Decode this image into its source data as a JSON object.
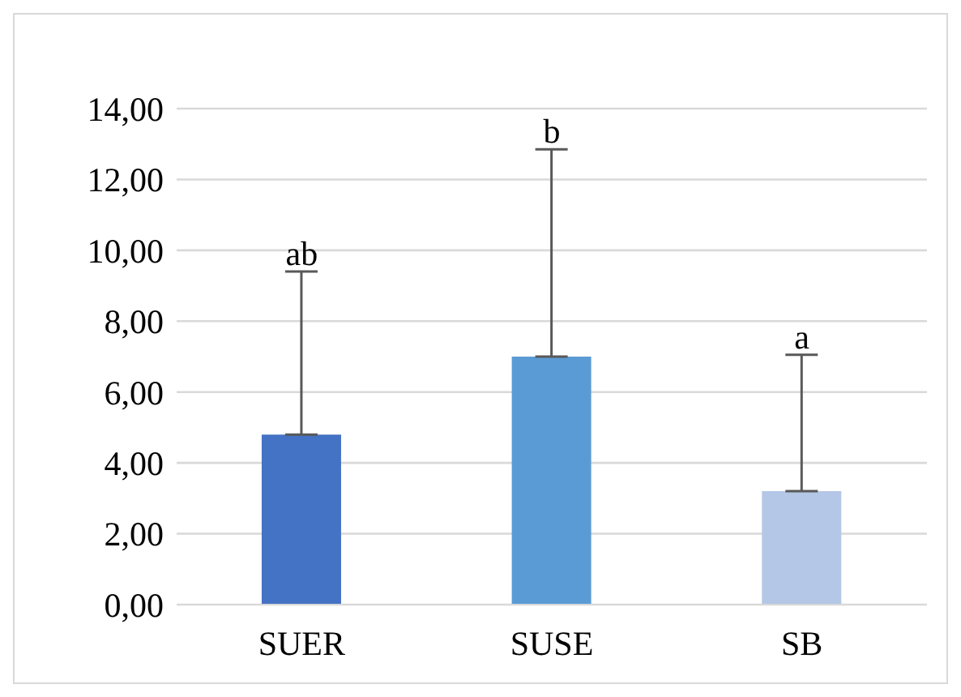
{
  "chart_data": {
    "type": "bar",
    "categories": [
      "SUER",
      "SUSE",
      "SB"
    ],
    "values": [
      4.8,
      7.0,
      3.2
    ],
    "colors": [
      "#4472c4",
      "#5b9bd5",
      "#b4c7e7"
    ],
    "errors": [
      [
        4.8,
        9.4
      ],
      [
        7.0,
        12.85
      ],
      [
        3.2,
        7.05
      ]
    ],
    "ylim": [
      0,
      14
    ],
    "yticks": [
      {
        "value": 0,
        "label": "0,00"
      },
      {
        "value": 2,
        "label": "2,00"
      },
      {
        "value": 4,
        "label": "4,00"
      },
      {
        "value": 6,
        "label": "6,00"
      },
      {
        "value": 8,
        "label": "8,00"
      },
      {
        "value": 10,
        "label": "10,00"
      },
      {
        "value": 12,
        "label": "12,00"
      },
      {
        "value": 14,
        "label": "14,00"
      }
    ],
    "grid": "y",
    "annotations": [
      {
        "text": "ab",
        "x": "SUER",
        "y": 9.4
      },
      {
        "text": "b",
        "x": "SUSE",
        "y": 12.85
      },
      {
        "text": "a",
        "x": "SB",
        "y": 7.05
      }
    ]
  }
}
